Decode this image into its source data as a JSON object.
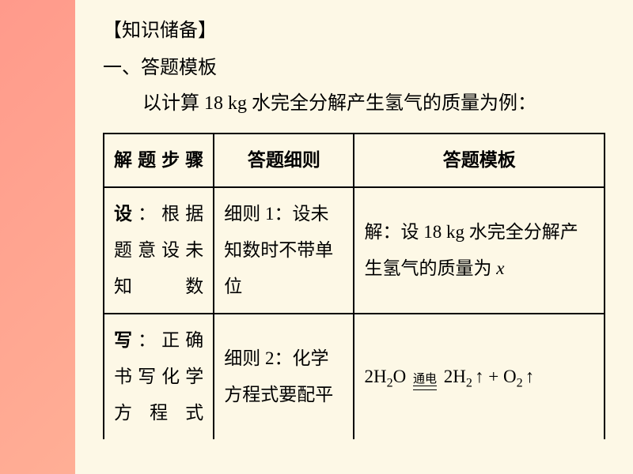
{
  "colors": {
    "page_bg": "#fdf8e6",
    "gradient_start": "#ff9a8b",
    "gradient_end": "#ffc3a0",
    "text": "#000000",
    "border": "#000000"
  },
  "typography": {
    "body_font": "SimSun, 宋体, serif",
    "formula_font": "Times New Roman, serif",
    "base_fontsize": 24,
    "table_fontsize": 23,
    "line_height": 2.0
  },
  "section_title": "【知识储备】",
  "subtitle": "一、答题模板",
  "intro": "以计算 18 kg 水完全分解产生氢气的质量为例：",
  "table": {
    "type": "table",
    "border_width": 2,
    "columns": [
      {
        "key": "step",
        "label": "解题步骤",
        "width_pct": 22
      },
      {
        "key": "detail",
        "label": "答题细则",
        "width_pct": 28
      },
      {
        "key": "template",
        "label": "答题模板",
        "width_pct": 50
      }
    ],
    "rows": [
      {
        "step_lead": "设",
        "step_rest": "：根据题意设未知数",
        "detail": "细则 1：设未知数时不带单位",
        "template_prefix": "解：设 18 kg 水完全分解产生氢气的质量为 ",
        "template_var": "x"
      },
      {
        "step_lead": "写",
        "step_rest": "：正确书写化学方程式",
        "detail": "细则 2：化学方程式要配平",
        "equation": {
          "left": "2H₂O",
          "condition": "通电",
          "right_parts": [
            {
              "text": "2H₂",
              "arrow": "↑"
            },
            {
              "op": " + "
            },
            {
              "text": "O₂",
              "arrow": "↑"
            }
          ]
        }
      }
    ]
  }
}
